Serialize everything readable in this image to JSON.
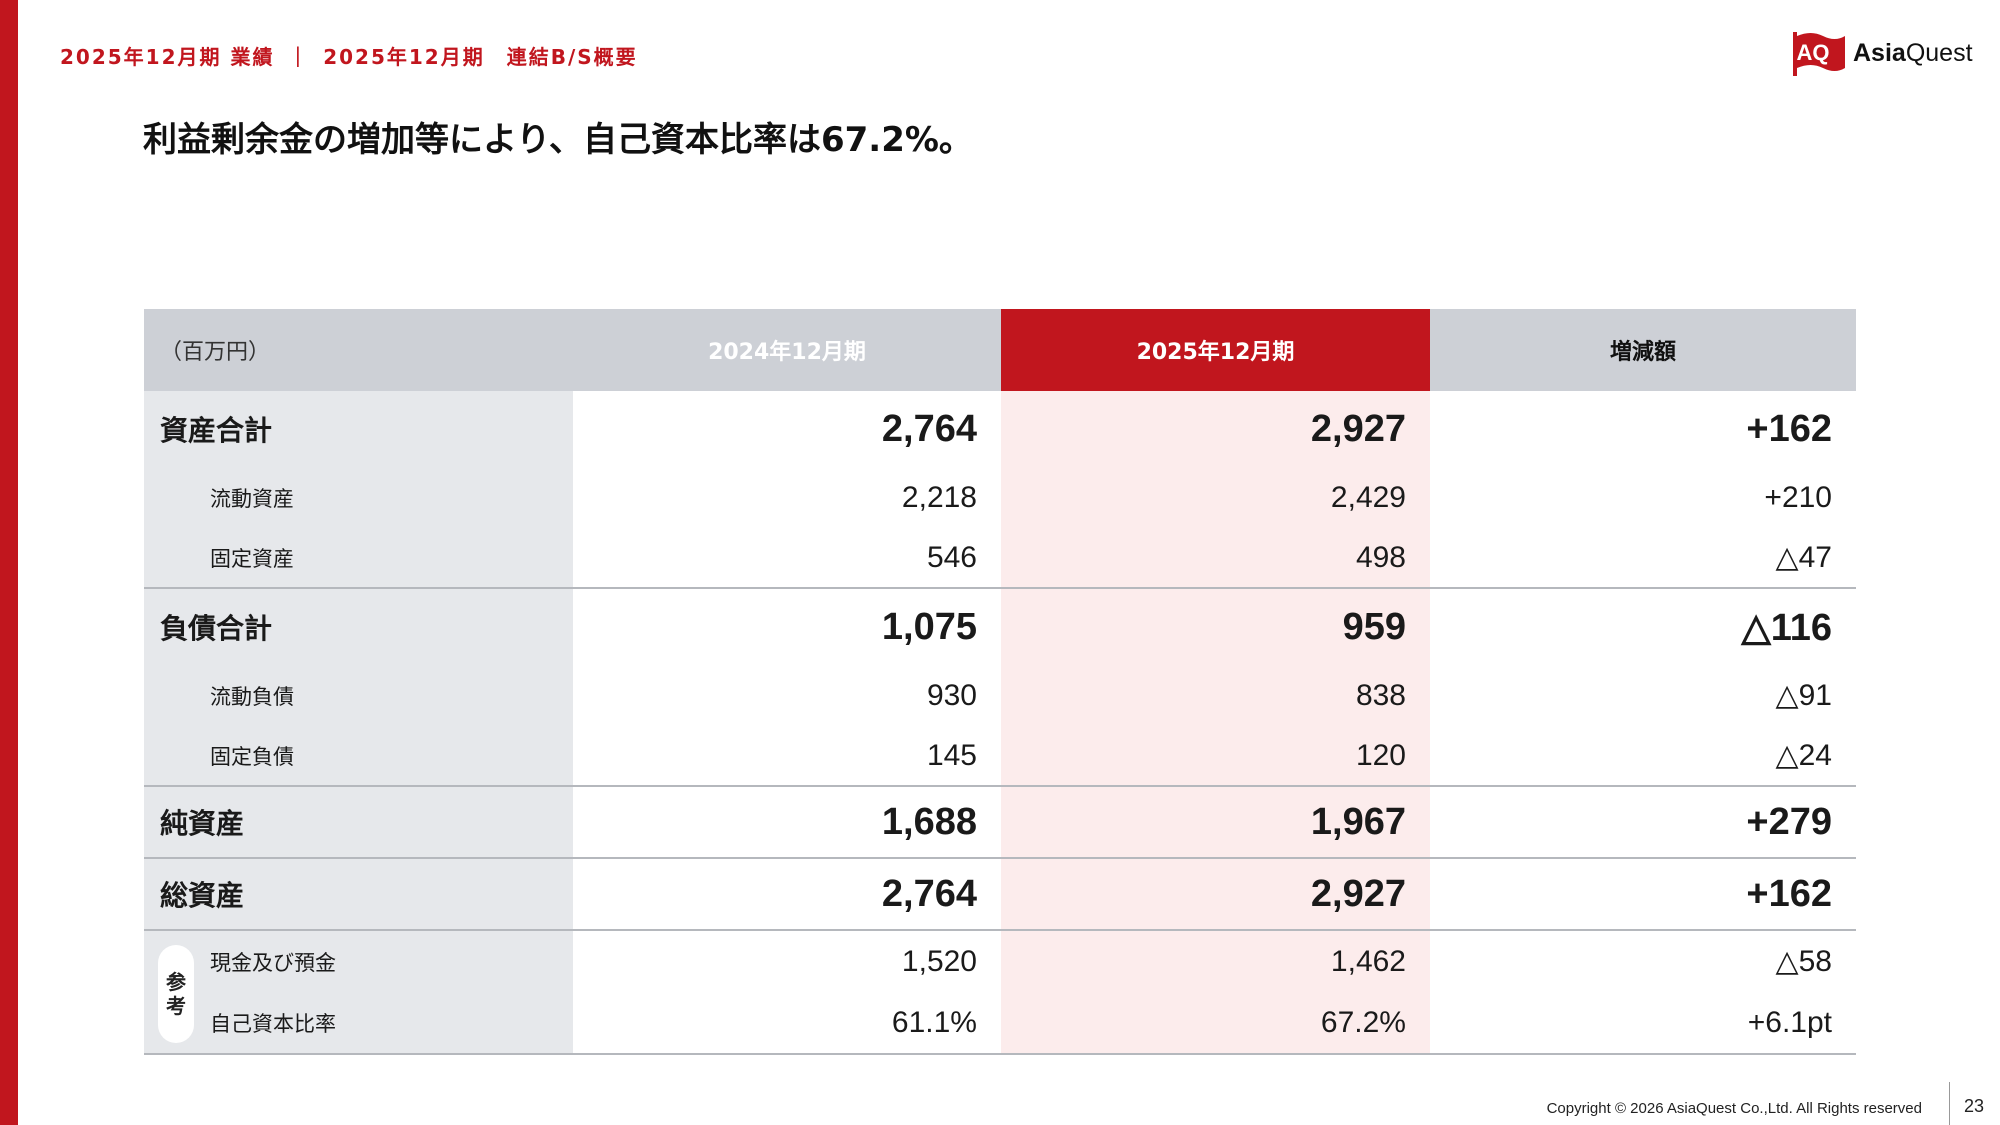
{
  "header": {
    "breadcrumb": [
      "2025年12月期 業績",
      "2025年12月期　連結B/S概要"
    ],
    "separator": "|",
    "logo": {
      "mark": "AQ",
      "brand_bold": "Asia",
      "brand_regular": "Quest",
      "accent": "#c1161e"
    }
  },
  "headline": "利益剰余金の増加等により、自己資本比率は67.2%。",
  "table": {
    "unit_label": "（百万円）",
    "columns": [
      "2024年12月期",
      "2025年12月期",
      "増減額"
    ],
    "rows": [
      {
        "label": "資産合計",
        "prev": "2,764",
        "cur": "2,927",
        "diff": "+162"
      },
      {
        "label": "流動資産",
        "prev": "2,218",
        "cur": "2,429",
        "diff": "+210"
      },
      {
        "label": "固定資産",
        "prev": "546",
        "cur": "498",
        "diff": "△47"
      },
      {
        "label": "負債合計",
        "prev": "1,075",
        "cur": "959",
        "diff": "△116"
      },
      {
        "label": "流動負債",
        "prev": "930",
        "cur": "838",
        "diff": "△91"
      },
      {
        "label": "固定負債",
        "prev": "145",
        "cur": "120",
        "diff": "△24"
      },
      {
        "label": "純資産",
        "prev": "1,688",
        "cur": "1,967",
        "diff": "+279"
      },
      {
        "label": "総資産",
        "prev": "2,764",
        "cur": "2,927",
        "diff": "+162"
      }
    ],
    "reference": {
      "badge": [
        "参",
        "考"
      ],
      "rows": [
        {
          "label": "現金及び預金",
          "prev": "1,520",
          "cur": "1,462",
          "diff": "△58"
        },
        {
          "label": "自己資本比率",
          "prev": "61.1%",
          "cur": "67.2%",
          "diff": "+6.1pt"
        }
      ]
    }
  },
  "footer": {
    "copyright": "Copyright © 2026 AsiaQuest Co.,Ltd. All Rights reserved",
    "page_number": "23"
  }
}
